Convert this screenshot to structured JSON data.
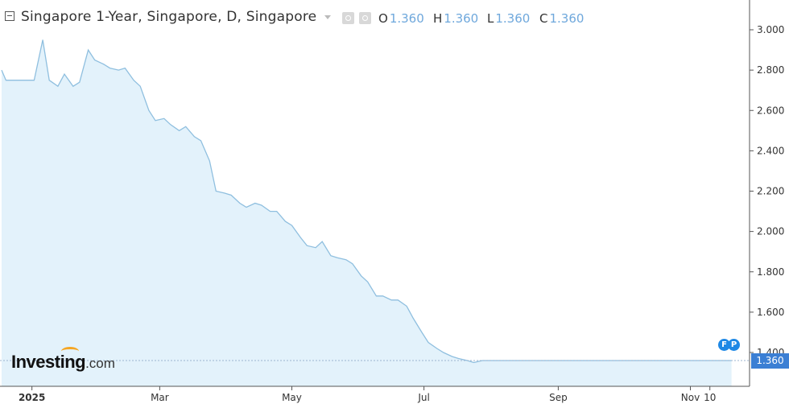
{
  "header": {
    "title": "Singapore 1-Year, Singapore, D, Singapore",
    "ohlc": [
      {
        "key": "O",
        "value": "1.360"
      },
      {
        "key": "H",
        "value": "1.360"
      },
      {
        "key": "L",
        "value": "1.360"
      },
      {
        "key": "C",
        "value": "1.360"
      }
    ],
    "icons": [
      "collapse-icon",
      "dropdown-caret-icon",
      "visibility-icon",
      "settings-gear-icon"
    ]
  },
  "branding": {
    "logo_main": "Investing",
    "logo_suffix": ".com"
  },
  "current_price_label": "1.360",
  "event_badges": [
    "F",
    "P"
  ],
  "colors": {
    "line": "#8fbfdf",
    "fill": "#e3f2fb",
    "price_tag": "#3b7fd4",
    "value_text": "#6fa8dc"
  },
  "chart_data": {
    "type": "area",
    "title": "Singapore 1-Year, Singapore, D, Singapore",
    "x_ticks": [
      "2025",
      "Mar",
      "May",
      "Jul",
      "Sep",
      "Nov",
      "10"
    ],
    "y_ticks": [
      "1.400",
      "1.600",
      "1.800",
      "2.000",
      "2.200",
      "2.400",
      "2.600",
      "2.800",
      "3.000"
    ],
    "ylim": [
      1.32,
      3.06
    ],
    "xlim": [
      "2024-12-18",
      "2025-11-22"
    ],
    "x_axis_position": "bottom",
    "y_axis_position": "right",
    "grid": false,
    "last_value": 1.36,
    "series": [
      {
        "x": [
          "2024-12-18",
          "2024-12-20",
          "2024-12-23",
          "2024-12-26",
          "2025-01-02",
          "2025-01-06",
          "2025-01-09",
          "2025-01-13",
          "2025-01-16",
          "2025-01-20",
          "2025-01-23",
          "2025-01-27",
          "2025-01-30",
          "2025-02-03",
          "2025-02-06",
          "2025-02-10",
          "2025-02-13",
          "2025-02-17",
          "2025-02-20",
          "2025-02-24",
          "2025-02-27",
          "2025-03-03",
          "2025-03-06",
          "2025-03-10",
          "2025-03-13",
          "2025-03-17",
          "2025-03-20",
          "2025-03-24",
          "2025-03-27",
          "2025-03-31",
          "2025-04-03",
          "2025-04-07",
          "2025-04-10",
          "2025-04-14",
          "2025-04-17",
          "2025-04-21",
          "2025-04-24",
          "2025-04-28",
          "2025-05-01",
          "2025-05-05",
          "2025-05-08",
          "2025-05-12",
          "2025-05-15",
          "2025-05-19",
          "2025-05-22",
          "2025-05-26",
          "2025-05-29",
          "2025-06-02",
          "2025-06-05",
          "2025-06-09",
          "2025-06-12",
          "2025-06-16",
          "2025-06-19",
          "2025-06-23",
          "2025-06-26",
          "2025-06-30",
          "2025-07-03",
          "2025-07-07",
          "2025-07-10",
          "2025-07-14",
          "2025-07-17",
          "2025-07-21",
          "2025-07-24",
          "2025-07-28",
          "2025-07-31",
          "2025-08-04",
          "2025-08-07",
          "2025-08-11",
          "2025-08-14",
          "2025-08-18",
          "2025-08-21",
          "2025-08-25",
          "2025-08-28",
          "2025-09-01",
          "2025-09-04",
          "2025-09-08",
          "2025-09-11",
          "2025-09-15",
          "2025-09-18",
          "2025-09-22",
          "2025-09-25",
          "2025-09-29",
          "2025-10-02",
          "2025-10-06",
          "2025-10-09",
          "2025-10-13",
          "2025-10-16",
          "2025-10-20",
          "2025-10-23",
          "2025-10-27",
          "2025-10-30",
          "2025-11-03",
          "2025-11-06",
          "2025-11-10",
          "2025-11-13",
          "2025-11-17",
          "2025-11-20"
        ],
        "y": [
          2.8,
          2.75,
          2.75,
          2.75,
          2.75,
          2.95,
          2.75,
          2.72,
          2.78,
          2.72,
          2.74,
          2.9,
          2.85,
          2.83,
          2.81,
          2.8,
          2.81,
          2.75,
          2.72,
          2.6,
          2.55,
          2.56,
          2.53,
          2.5,
          2.52,
          2.47,
          2.45,
          2.35,
          2.2,
          2.19,
          2.18,
          2.14,
          2.12,
          2.14,
          2.13,
          2.1,
          2.1,
          2.05,
          2.03,
          1.97,
          1.93,
          1.92,
          1.95,
          1.88,
          1.87,
          1.86,
          1.84,
          1.78,
          1.75,
          1.68,
          1.68,
          1.66,
          1.66,
          1.63,
          1.57,
          1.5,
          1.45,
          1.42,
          1.4,
          1.38,
          1.37,
          1.36,
          1.35,
          1.36,
          1.36,
          1.36,
          1.36,
          1.36,
          1.36,
          1.36,
          1.36,
          1.36,
          1.36,
          1.36,
          1.36,
          1.36,
          1.36,
          1.36,
          1.36,
          1.36,
          1.36,
          1.36,
          1.36,
          1.36,
          1.36,
          1.36,
          1.36,
          1.36,
          1.36,
          1.36,
          1.36,
          1.36,
          1.36,
          1.36,
          1.36,
          1.36,
          1.36
        ]
      }
    ]
  }
}
